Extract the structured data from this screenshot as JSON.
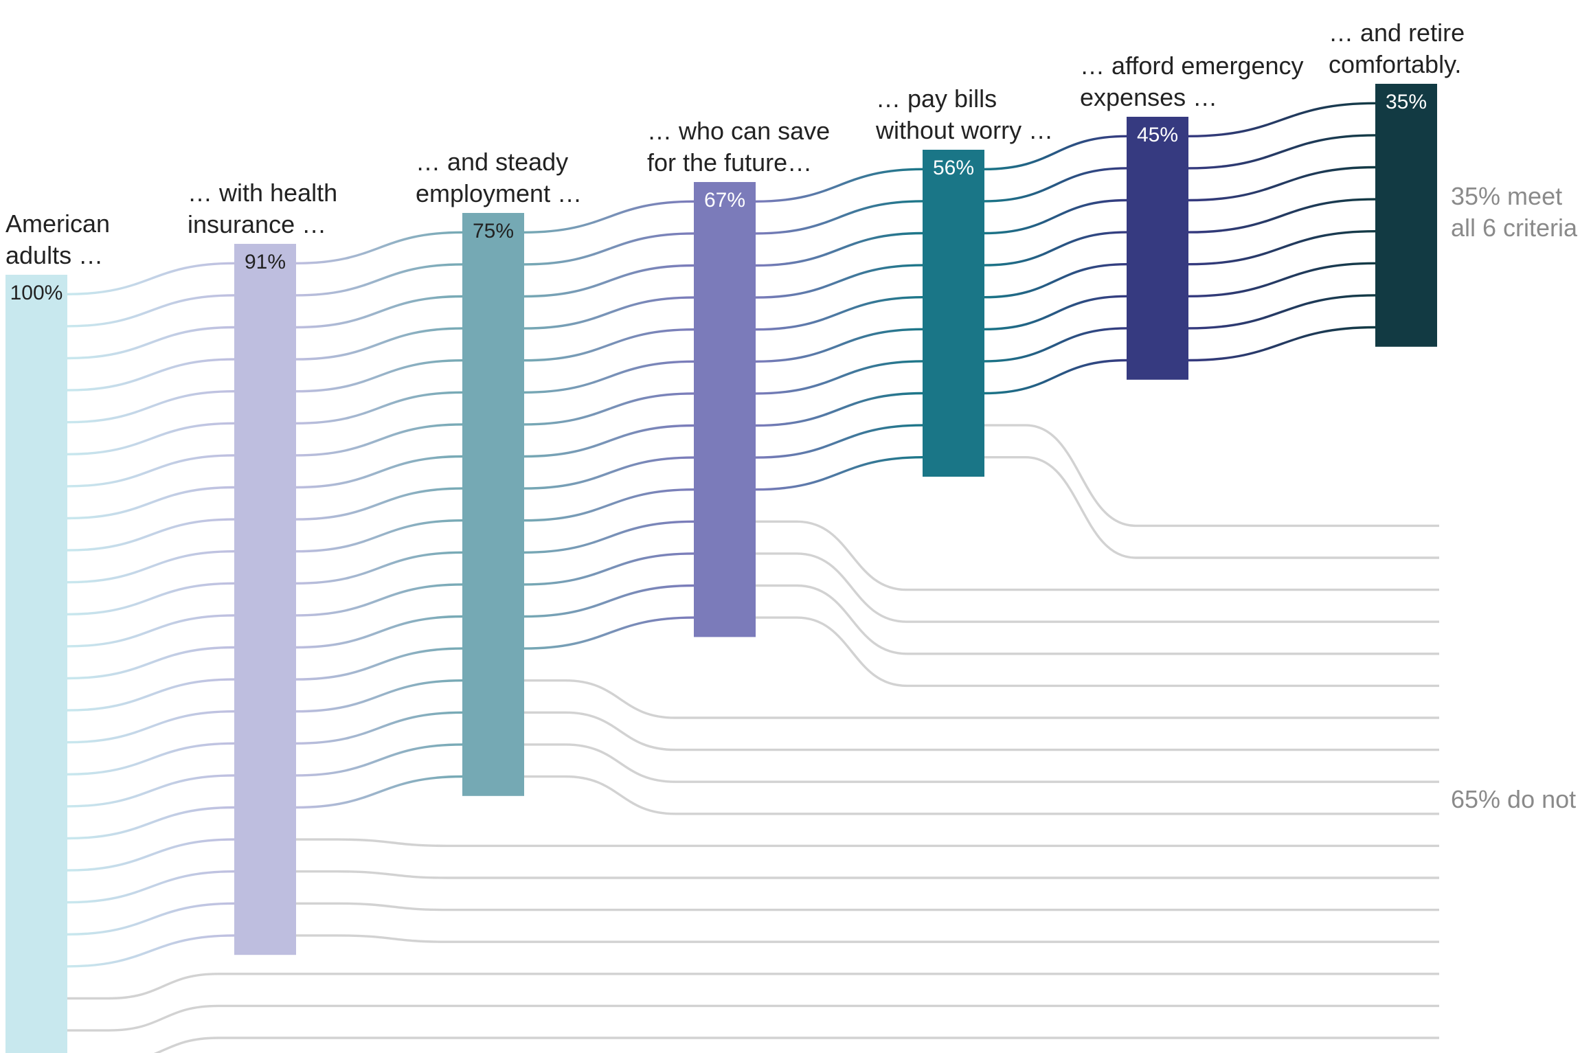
{
  "chart_data": {
    "type": "sankey",
    "title": "",
    "total_strands": 25,
    "stages": [
      {
        "label": "American adults …",
        "label_lines": [
          "American",
          "adults …"
        ],
        "value": 100,
        "value_label": "100%",
        "color": "#c8e8ee",
        "text_color": "#222222"
      },
      {
        "label": "… with health insurance …",
        "label_lines": [
          "… with health",
          "insurance …"
        ],
        "value": 91,
        "value_label": "91%",
        "color": "#bebedf",
        "text_color": "#222222"
      },
      {
        "label": "… and steady employment …",
        "label_lines": [
          "… and steady",
          "employment …"
        ],
        "value": 75,
        "value_label": "75%",
        "color": "#75a9b4",
        "text_color": "#222222"
      },
      {
        "label": "… who can save for the future…",
        "label_lines": [
          "… who can save",
          "for the future…"
        ],
        "value": 67,
        "value_label": "67%",
        "color": "#7b7bba",
        "text_color": "#ffffff"
      },
      {
        "label": "… pay bills without worry …",
        "label_lines": [
          "… pay bills",
          "without worry …"
        ],
        "value": 56,
        "value_label": "56%",
        "color": "#1a7687",
        "text_color": "#ffffff"
      },
      {
        "label": "… afford emergency expenses …",
        "label_lines": [
          "… afford emergency",
          "expenses …"
        ],
        "value": 45,
        "value_label": "45%",
        "color": "#363a80",
        "text_color": "#ffffff"
      },
      {
        "label": "… and retire comfortably.",
        "label_lines": [
          "… and retire",
          "comfortably."
        ],
        "value": 35,
        "value_label": "35%",
        "color": "#123a43",
        "text_color": "#ffffff"
      }
    ],
    "strands_per_stage": [
      25,
      22,
      18,
      14,
      10,
      8
    ],
    "strands_meeting_all": 8,
    "meet_label": "35% meet all 6 criteria",
    "meet_label_lines": [
      "35% meet",
      "all 6 criteria"
    ],
    "not_label": "65% do not",
    "dropout_color": "#d2d2d2"
  }
}
